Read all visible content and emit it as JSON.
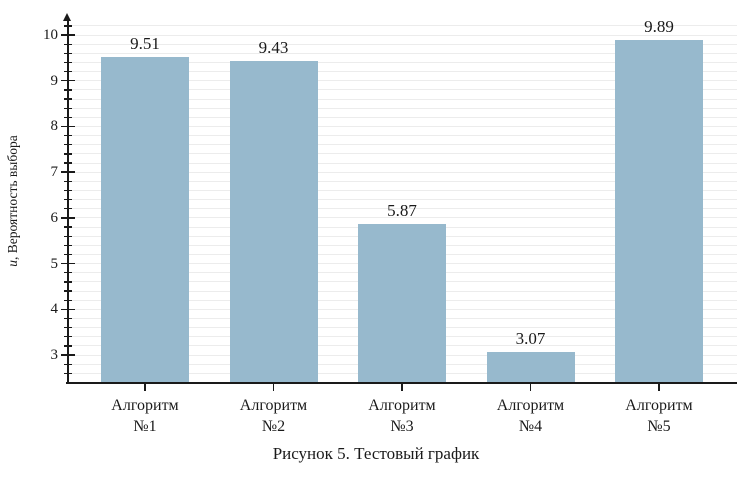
{
  "caption": "Рисунок 5. Тестовый график",
  "chart_data": {
    "type": "bar",
    "categories": [
      "Алгоритм №1",
      "Алгоритм №2",
      "Алгоритм №3",
      "Алгоритм №4",
      "Алгоритм №5"
    ],
    "values": [
      9.51,
      9.43,
      5.87,
      3.07,
      9.89
    ],
    "value_labels": [
      "9.51",
      "9.43",
      "5.87",
      "3.07",
      "9.89"
    ],
    "title": "",
    "xlabel": "",
    "ylabel": "u, Вероятность выбора",
    "ylabel_italic_prefix": "u",
    "yticks": [
      3,
      4,
      5,
      6,
      7,
      8,
      9,
      10
    ],
    "ylim": [
      2.39,
      10.33
    ],
    "grid": "horizontal",
    "grid_step": 0.2,
    "grid_min": 2.6,
    "grid_max": 10.2,
    "legend": "none",
    "colors": {
      "bar": "#97b9cd",
      "grid": "#ececec",
      "axis": "#1a1a1a",
      "text": "#1a1a1a"
    }
  }
}
